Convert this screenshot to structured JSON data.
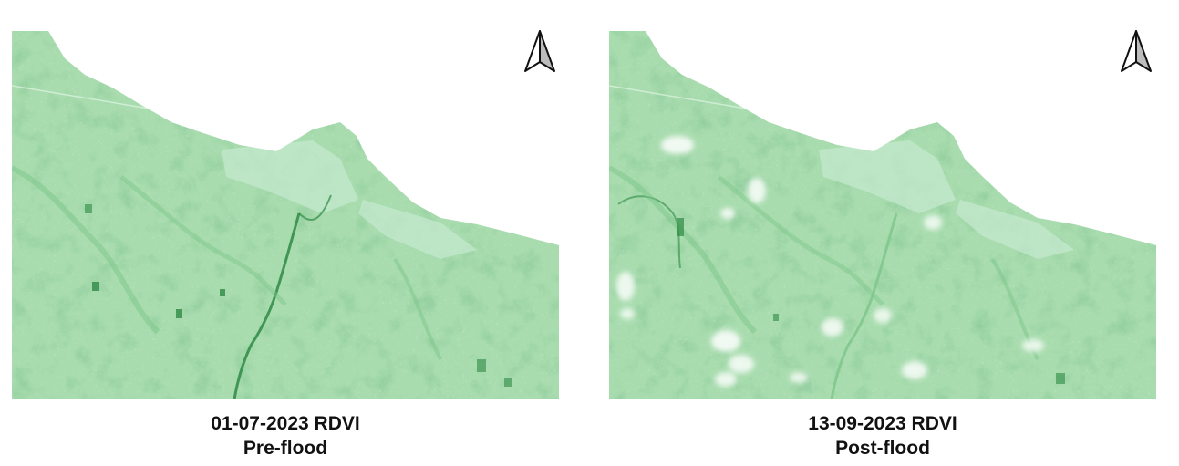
{
  "colors": {
    "vegetation_base": "#a8dcae",
    "vegetation_dark": "#2f8a45",
    "vegetation_mid": "#7cc58a",
    "vegetation_light": "#c6ead0",
    "cloud": "#f4fbf5",
    "sea": "#ffffff",
    "caption_text": "#111111"
  },
  "panels": [
    {
      "id": "pre",
      "date_label": "01-07-2023 RDVI",
      "phase_label": "Pre-flood",
      "north_icon": "north-arrow-icon"
    },
    {
      "id": "post",
      "date_label": "13-09-2023 RDVI",
      "phase_label": "Post-flood",
      "north_icon": "north-arrow-icon"
    }
  ]
}
